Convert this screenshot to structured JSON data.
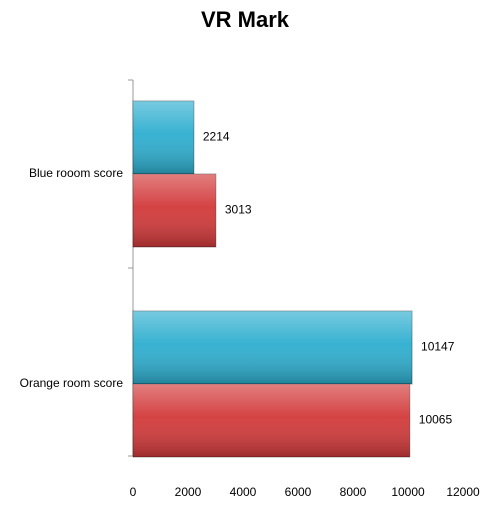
{
  "chart_data": {
    "type": "hbar",
    "title": "VR Mark",
    "categories": [
      "Blue rooom score",
      "Orange room score"
    ],
    "series": [
      {
        "color": "#2eaecf",
        "values": [
          2214,
          10147
        ]
      },
      {
        "color": "#d2393a",
        "values": [
          3013,
          10065
        ]
      }
    ],
    "xlim": [
      0,
      12000
    ],
    "xticks": [
      0,
      2000,
      4000,
      6000,
      8000,
      10000,
      12000
    ],
    "grid": false
  }
}
